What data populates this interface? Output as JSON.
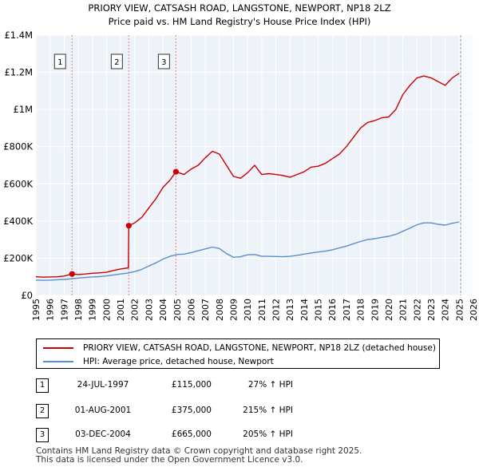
{
  "chart_data": {
    "type": "line",
    "title": "PRIORY VIEW, CATSASH ROAD, LANGSTONE, NEWPORT, NP18 2LZ",
    "subtitle": "Price paid vs. HM Land Registry's House Price Index (HPI)",
    "xlim": [
      1995,
      2026
    ],
    "ylim": [
      0,
      1400000
    ],
    "x_ticks": [
      "1995",
      "1996",
      "1997",
      "1998",
      "1999",
      "2000",
      "2001",
      "2002",
      "2003",
      "2004",
      "2005",
      "2006",
      "2007",
      "2008",
      "2009",
      "2010",
      "2011",
      "2012",
      "2013",
      "2014",
      "2015",
      "2016",
      "2017",
      "2018",
      "2019",
      "2020",
      "2021",
      "2022",
      "2023",
      "2024",
      "2025",
      "2026"
    ],
    "y_ticks": [
      {
        "value": 0,
        "label": "£0"
      },
      {
        "value": 200000,
        "label": "£200K"
      },
      {
        "value": 400000,
        "label": "£400K"
      },
      {
        "value": 600000,
        "label": "£600K"
      },
      {
        "value": 800000,
        "label": "£800K"
      },
      {
        "value": 1000000,
        "label": "£1M"
      },
      {
        "value": 1200000,
        "label": "£1.2M"
      },
      {
        "value": 1400000,
        "label": "£1.4M"
      }
    ],
    "grid": true,
    "forecast_start": 2025.1,
    "series": [
      {
        "name": "PRIORY VIEW, CATSASH ROAD, LANGSTONE, NEWPORT, NP18 2LZ (detached house)",
        "color": "#cc0000",
        "points": [
          [
            1995.0,
            100000
          ],
          [
            1995.5,
            98000
          ],
          [
            1996.0,
            99000
          ],
          [
            1996.5,
            100000
          ],
          [
            1997.0,
            104000
          ],
          [
            1997.56,
            115000
          ],
          [
            1998.0,
            112000
          ],
          [
            1998.5,
            115000
          ],
          [
            1999.0,
            119000
          ],
          [
            1999.5,
            121000
          ],
          [
            2000.0,
            124000
          ],
          [
            2000.5,
            134000
          ],
          [
            2001.0,
            142000
          ],
          [
            2001.55,
            148000
          ],
          [
            2001.58,
            375000
          ],
          [
            2002.0,
            390000
          ],
          [
            2002.5,
            420000
          ],
          [
            2003.0,
            470000
          ],
          [
            2003.5,
            520000
          ],
          [
            2004.0,
            580000
          ],
          [
            2004.5,
            620000
          ],
          [
            2004.92,
            665000
          ],
          [
            2005.5,
            650000
          ],
          [
            2006.0,
            680000
          ],
          [
            2006.5,
            700000
          ],
          [
            2007.0,
            740000
          ],
          [
            2007.5,
            775000
          ],
          [
            2008.0,
            760000
          ],
          [
            2008.5,
            700000
          ],
          [
            2009.0,
            640000
          ],
          [
            2009.5,
            630000
          ],
          [
            2010.0,
            660000
          ],
          [
            2010.5,
            700000
          ],
          [
            2011.0,
            650000
          ],
          [
            2011.5,
            655000
          ],
          [
            2012.0,
            650000
          ],
          [
            2012.5,
            645000
          ],
          [
            2013.0,
            635000
          ],
          [
            2013.5,
            650000
          ],
          [
            2014.0,
            665000
          ],
          [
            2014.5,
            690000
          ],
          [
            2015.0,
            695000
          ],
          [
            2015.5,
            710000
          ],
          [
            2016.0,
            735000
          ],
          [
            2016.5,
            760000
          ],
          [
            2017.0,
            800000
          ],
          [
            2017.5,
            850000
          ],
          [
            2018.0,
            900000
          ],
          [
            2018.5,
            930000
          ],
          [
            2019.0,
            940000
          ],
          [
            2019.5,
            955000
          ],
          [
            2020.0,
            960000
          ],
          [
            2020.5,
            1000000
          ],
          [
            2021.0,
            1080000
          ],
          [
            2021.5,
            1130000
          ],
          [
            2022.0,
            1170000
          ],
          [
            2022.5,
            1180000
          ],
          [
            2023.0,
            1170000
          ],
          [
            2023.5,
            1150000
          ],
          [
            2024.0,
            1130000
          ],
          [
            2024.5,
            1170000
          ],
          [
            2025.0,
            1195000
          ]
        ]
      },
      {
        "name": "HPI: Average price, detached house, Newport",
        "color": "#5b8fcc",
        "points": [
          [
            1995.0,
            82000
          ],
          [
            1995.5,
            81000
          ],
          [
            1996.0,
            82000
          ],
          [
            1996.5,
            84000
          ],
          [
            1997.0,
            86000
          ],
          [
            1997.5,
            89000
          ],
          [
            1998.0,
            93000
          ],
          [
            1998.5,
            96000
          ],
          [
            1999.0,
            99000
          ],
          [
            1999.5,
            101000
          ],
          [
            2000.0,
            105000
          ],
          [
            2000.5,
            110000
          ],
          [
            2001.0,
            115000
          ],
          [
            2001.5,
            120000
          ],
          [
            2002.0,
            128000
          ],
          [
            2002.5,
            140000
          ],
          [
            2003.0,
            158000
          ],
          [
            2003.5,
            175000
          ],
          [
            2004.0,
            195000
          ],
          [
            2004.5,
            210000
          ],
          [
            2005.0,
            220000
          ],
          [
            2005.5,
            222000
          ],
          [
            2006.0,
            230000
          ],
          [
            2006.5,
            240000
          ],
          [
            2007.0,
            250000
          ],
          [
            2007.5,
            260000
          ],
          [
            2008.0,
            252000
          ],
          [
            2008.5,
            225000
          ],
          [
            2009.0,
            205000
          ],
          [
            2009.5,
            208000
          ],
          [
            2010.0,
            218000
          ],
          [
            2010.5,
            220000
          ],
          [
            2011.0,
            210000
          ],
          [
            2011.5,
            210000
          ],
          [
            2012.0,
            209000
          ],
          [
            2012.5,
            208000
          ],
          [
            2013.0,
            210000
          ],
          [
            2013.5,
            215000
          ],
          [
            2014.0,
            222000
          ],
          [
            2014.5,
            228000
          ],
          [
            2015.0,
            233000
          ],
          [
            2015.5,
            238000
          ],
          [
            2016.0,
            245000
          ],
          [
            2016.5,
            255000
          ],
          [
            2017.0,
            265000
          ],
          [
            2017.5,
            278000
          ],
          [
            2018.0,
            290000
          ],
          [
            2018.5,
            300000
          ],
          [
            2019.0,
            305000
          ],
          [
            2019.5,
            312000
          ],
          [
            2020.0,
            318000
          ],
          [
            2020.5,
            328000
          ],
          [
            2021.0,
            345000
          ],
          [
            2021.5,
            362000
          ],
          [
            2022.0,
            380000
          ],
          [
            2022.5,
            390000
          ],
          [
            2023.0,
            390000
          ],
          [
            2023.5,
            382000
          ],
          [
            2024.0,
            378000
          ],
          [
            2024.5,
            388000
          ],
          [
            2025.0,
            395000
          ]
        ]
      }
    ],
    "sales": [
      {
        "number": "1",
        "x": 1997.56,
        "price": 115000
      },
      {
        "number": "2",
        "x": 2001.58,
        "price": 375000
      },
      {
        "number": "3",
        "x": 2004.92,
        "price": 665000
      }
    ]
  },
  "legend": {
    "property_label": "PRIORY VIEW, CATSASH ROAD, LANGSTONE, NEWPORT, NP18 2LZ (detached house)",
    "hpi_label": "HPI: Average price, detached house, Newport"
  },
  "transactions": [
    {
      "number": "1",
      "date": "24-JUL-1997",
      "price": "£115,000",
      "hpi": "27% ↑ HPI"
    },
    {
      "number": "2",
      "date": "01-AUG-2001",
      "price": "£375,000",
      "hpi": "215% ↑ HPI"
    },
    {
      "number": "3",
      "date": "03-DEC-2004",
      "price": "£665,000",
      "hpi": "205% ↑ HPI"
    }
  ],
  "footer": {
    "line1": "Contains HM Land Registry data © Crown copyright and database right 2025.",
    "line2": "This data is licensed under the Open Government Licence v3.0."
  },
  "colors": {
    "property": "#cc0000",
    "hpi": "#5b8fcc",
    "plot_bg": "#eef2f9",
    "grid": "#ffffff",
    "vline": "#e08080"
  }
}
